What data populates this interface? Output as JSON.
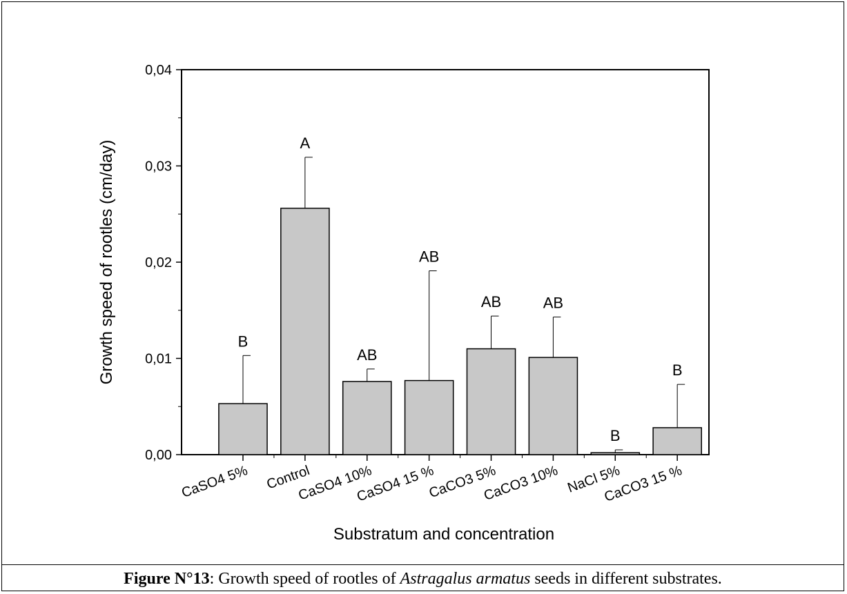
{
  "caption": {
    "label": "Figure N°13",
    "text_before": ": Growth speed of rootles of ",
    "species": "Astragalus armatus",
    "text_after": " seeds in different substrates."
  },
  "chart_data": {
    "type": "bar",
    "title": "",
    "xlabel": "Substratum and concentration",
    "ylabel": "Growth speed of rootles (cm/day)",
    "ylim": [
      0,
      0.04
    ],
    "yticks": [
      0,
      0.01,
      0.02,
      0.03,
      0.04
    ],
    "ytick_labels": [
      "0,00",
      "0,01",
      "0,02",
      "0,03",
      "0,04"
    ],
    "categories": [
      "CaSO4 5%",
      "Control",
      "CaSO4 10%",
      "CaSO4 15 %",
      "CaCO3 5%",
      "CaCO3 10%",
      "NaCl 5%",
      "CaCO3 15 %"
    ],
    "values": [
      0.0053,
      0.0256,
      0.0076,
      0.0077,
      0.011,
      0.0101,
      0.0002,
      0.0028
    ],
    "error_upper": [
      0.0103,
      0.0309,
      0.0089,
      0.0191,
      0.0144,
      0.0143,
      0.0005,
      0.0073
    ],
    "significance_labels": [
      "B",
      "A",
      "AB",
      "AB",
      "AB",
      "AB",
      "B",
      "B"
    ],
    "bar_color": "#c8c8c8",
    "grid": false
  }
}
